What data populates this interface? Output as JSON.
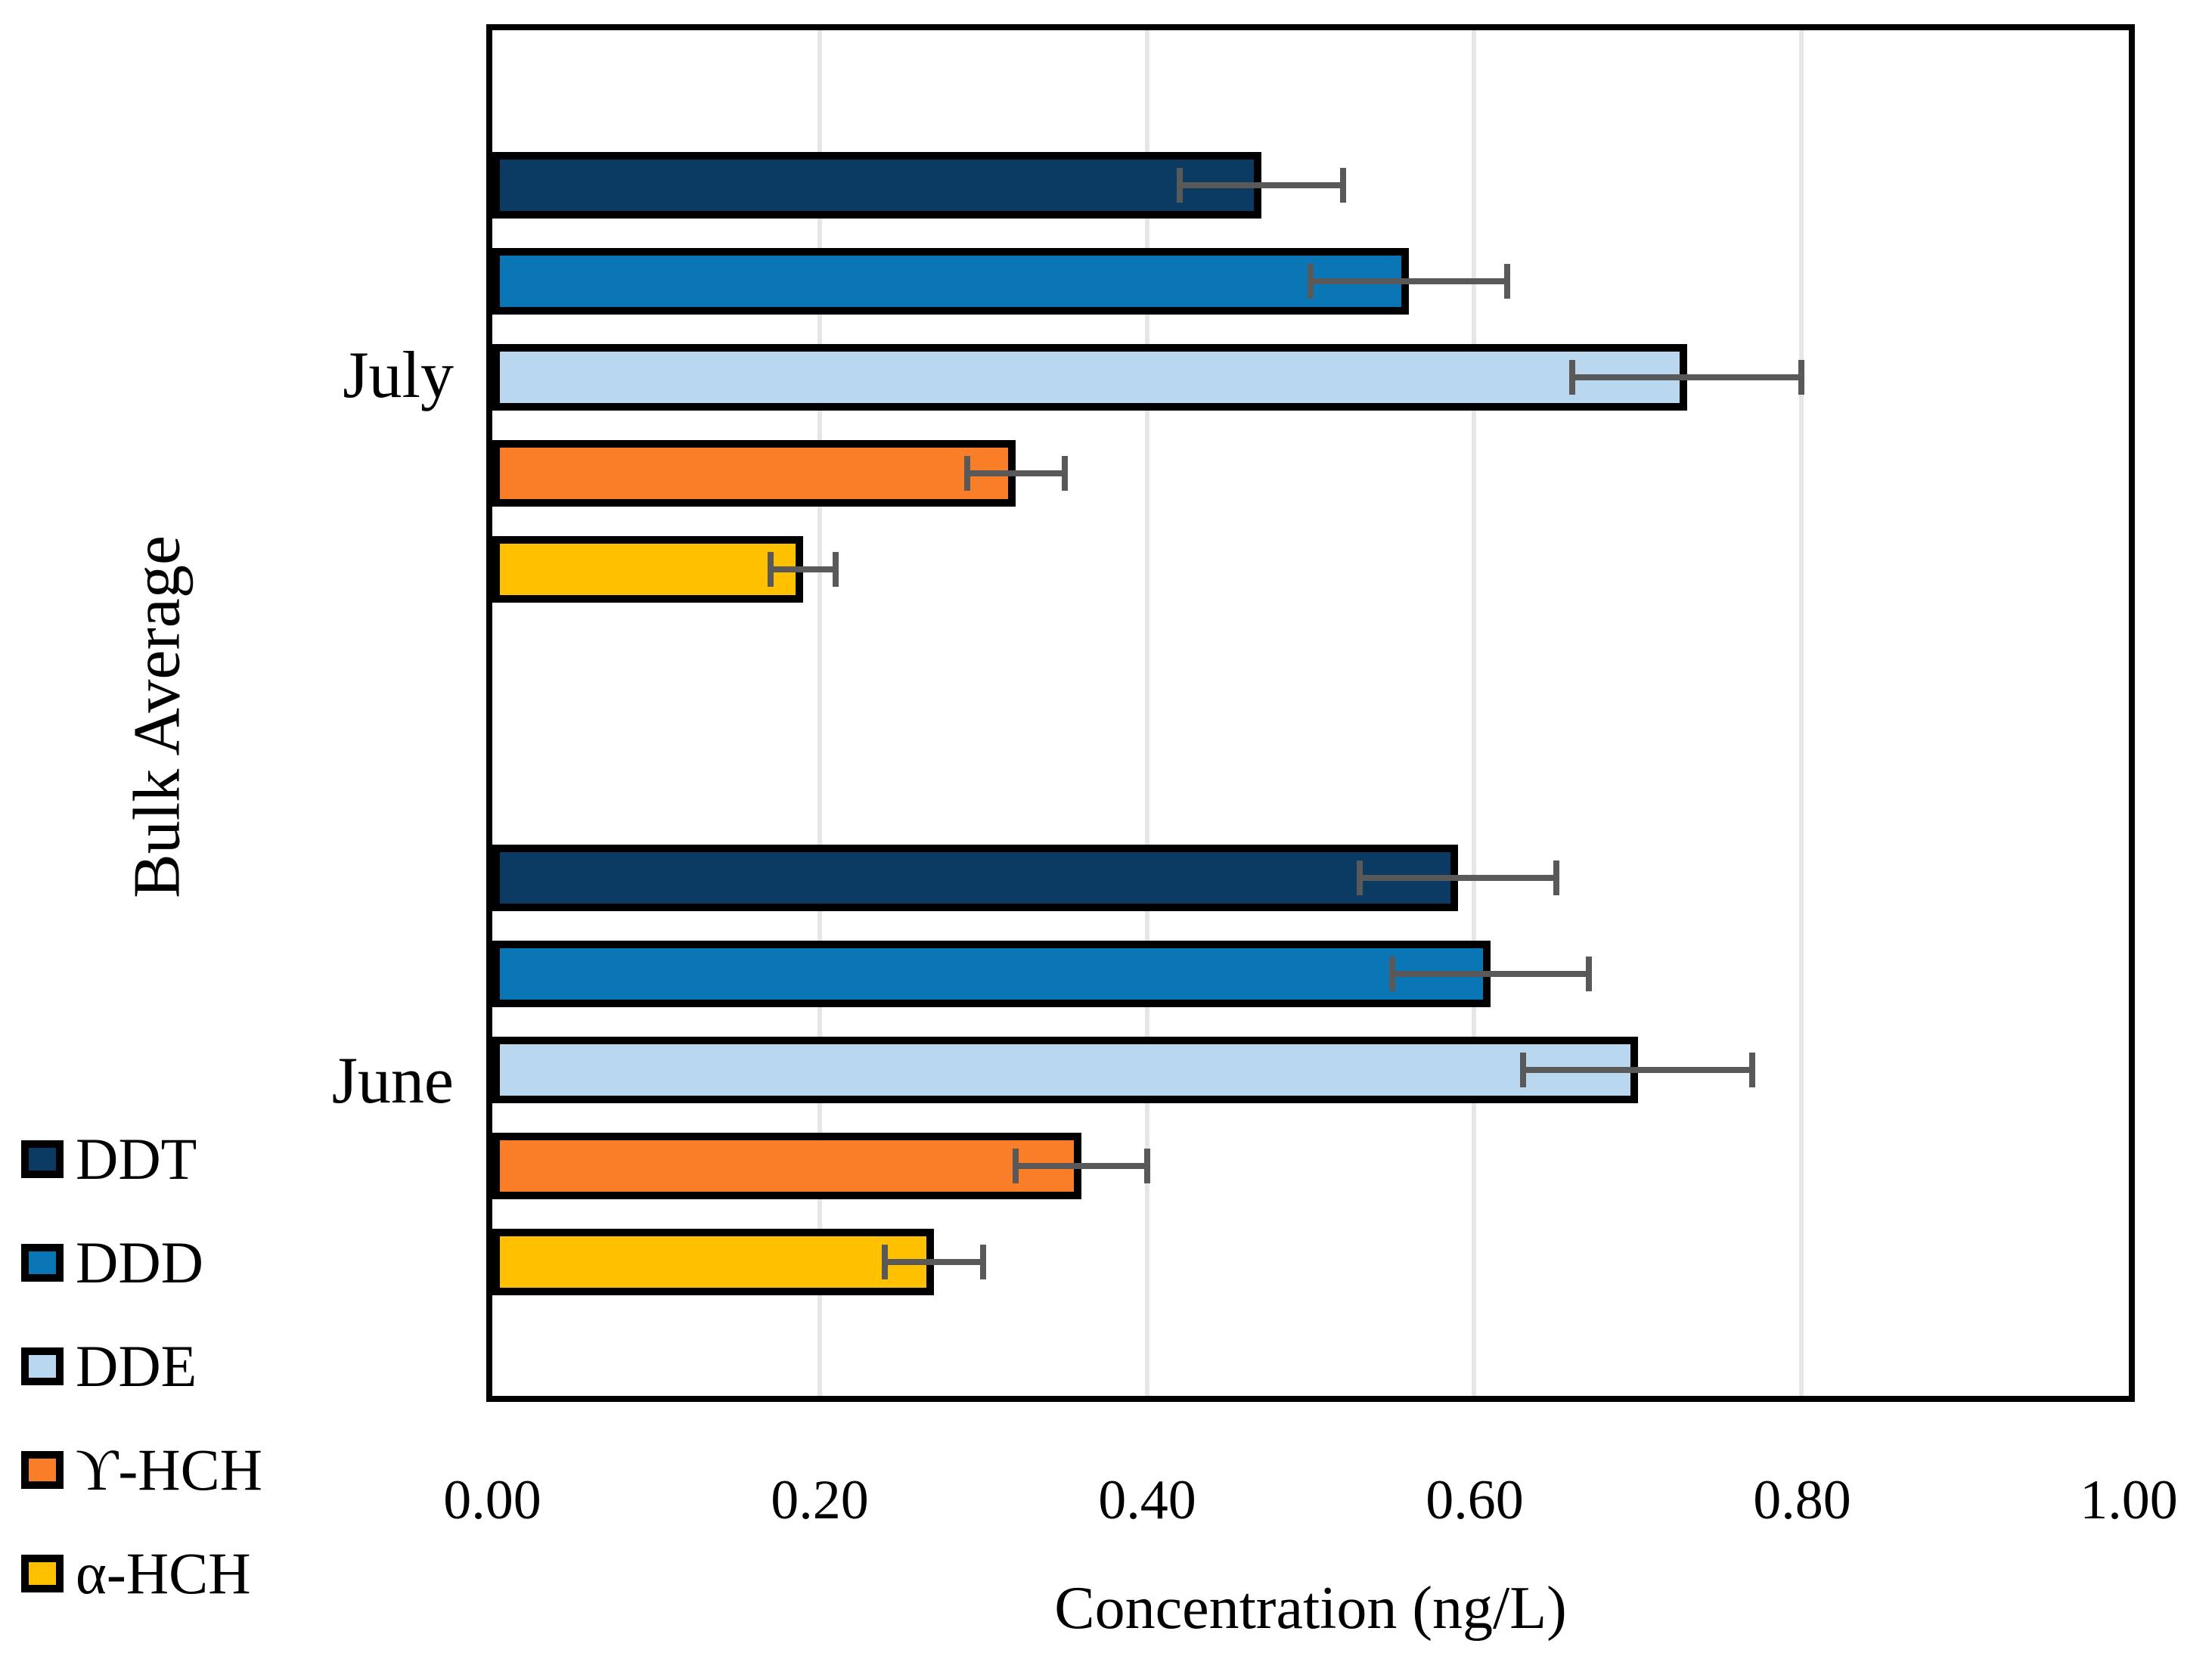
{
  "chart_data": {
    "type": "bar",
    "orientation": "horizontal",
    "title": "",
    "xlabel": "Concentration (ng/L)",
    "ylabel": "Bulk Average",
    "xlim": [
      0.0,
      1.0
    ],
    "x_tick_step": 0.2,
    "grid": true,
    "legend_position": "bottom-left",
    "error_bars": true,
    "categories": [
      "July",
      "June"
    ],
    "series": [
      {
        "name": "DDT",
        "color": "#0b3a63",
        "values": [
          0.47,
          0.59
        ],
        "errors": [
          0.05,
          0.06
        ]
      },
      {
        "name": "DDD",
        "color": "#0a76b6",
        "values": [
          0.56,
          0.61
        ],
        "errors": [
          0.06,
          0.06
        ]
      },
      {
        "name": "DDE",
        "color": "#b9d7ee",
        "values": [
          0.73,
          0.7
        ],
        "errors": [
          0.07,
          0.07
        ]
      },
      {
        "name": "ϒ-HCH",
        "color": "#f97e27",
        "values": [
          0.32,
          0.36
        ],
        "errors": [
          0.03,
          0.04
        ]
      },
      {
        "name": "α-HCH",
        "color": "#ffc000",
        "values": [
          0.19,
          0.27
        ],
        "errors": [
          0.02,
          0.03
        ]
      }
    ]
  },
  "axes": {
    "x_ticks": [
      "0.00",
      "0.20",
      "0.40",
      "0.60",
      "0.80",
      "1.00"
    ],
    "x_tick_values": [
      0.0,
      0.2,
      0.4,
      0.6,
      0.8,
      1.0
    ]
  },
  "colors": {
    "bar_outline": "#000000",
    "error_bar": "#595959",
    "gridline": "#e6e6e6",
    "frame": "#000000",
    "background": "#ffffff"
  }
}
